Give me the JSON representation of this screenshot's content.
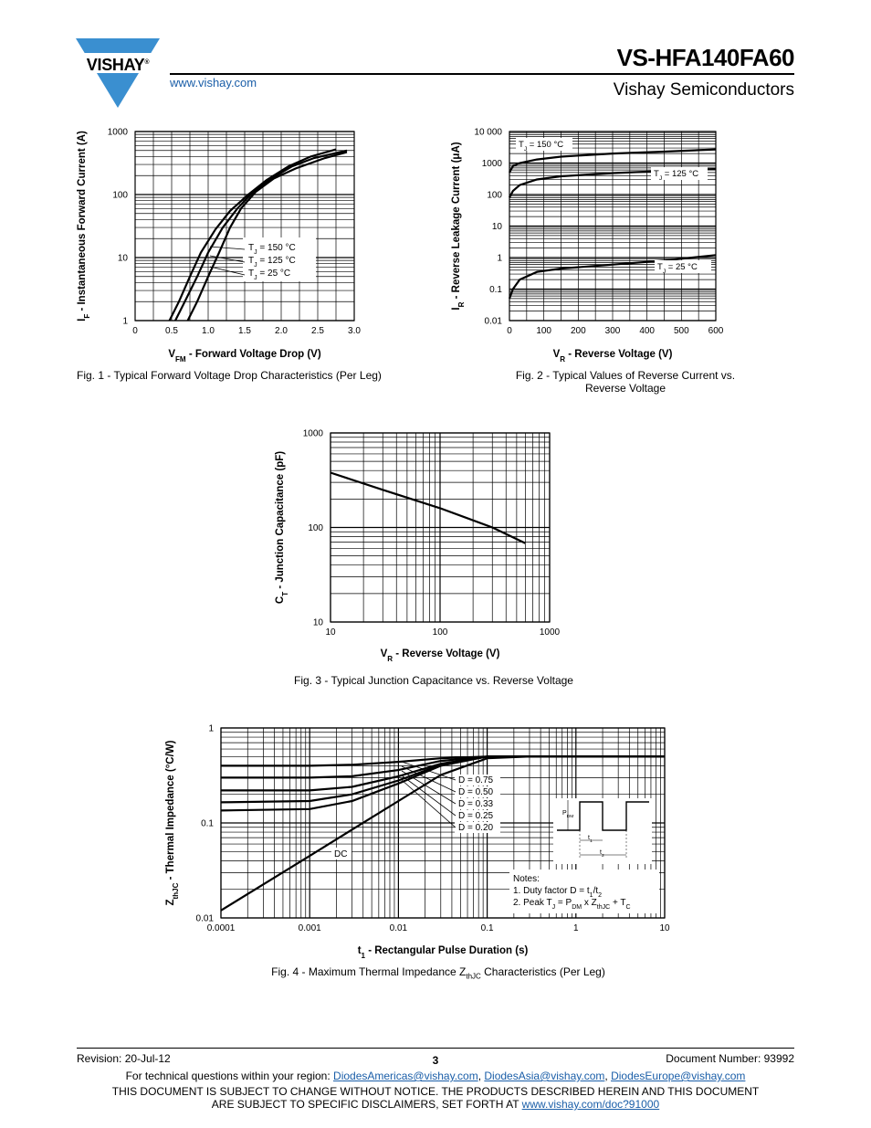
{
  "header": {
    "logo_text": "VISHAY",
    "logo_mark": "®",
    "website": "www.vishay.com",
    "title": "VS-HFA140FA60",
    "company": "Vishay Semiconductors"
  },
  "chart_data": [
    {
      "id": "fig1",
      "type": "line",
      "caption": "Fig. 1 - Typical Forward Voltage Drop Characteristics (Per Leg)",
      "xlabel": "VFM - Forward Voltage Drop (V)",
      "xlabel_parts": [
        "V",
        "FM",
        " - Forward Voltage Drop (V)"
      ],
      "ylabel": "IF - Instantaneous Forward Current (A)",
      "ylabel_parts": [
        "I",
        "F",
        " - Instantaneous Forward Current (A)"
      ],
      "x_scale": "linear",
      "y_scale": "log",
      "xlim": [
        0,
        3.0
      ],
      "ylim": [
        1,
        1000
      ],
      "x_ticks": [
        "0",
        "0.5",
        "1.0",
        "1.5",
        "2.0",
        "2.5",
        "3.0"
      ],
      "y_ticks": [
        "1",
        "10",
        "100",
        "1000"
      ],
      "grid": true,
      "legend": [
        {
          "pre": "T",
          "sub": "J",
          "post": " = 150 °C"
        },
        {
          "pre": "T",
          "sub": "J",
          "post": " = 125 °C"
        },
        {
          "pre": "T",
          "sub": "J",
          "post": " = 25 °C"
        }
      ],
      "series": [
        {
          "name": "TJ = 150 °C",
          "points": [
            [
              0.47,
              1
            ],
            [
              0.6,
              2
            ],
            [
              0.75,
              5
            ],
            [
              0.9,
              12
            ],
            [
              1.1,
              28
            ],
            [
              1.3,
              55
            ],
            [
              1.55,
              100
            ],
            [
              1.8,
              170
            ],
            [
              2.1,
              280
            ],
            [
              2.4,
              400
            ],
            [
              2.75,
              520
            ]
          ]
        },
        {
          "name": "TJ = 125 °C",
          "points": [
            [
              0.55,
              1
            ],
            [
              0.68,
              2
            ],
            [
              0.85,
              5
            ],
            [
              1.0,
              12
            ],
            [
              1.2,
              30
            ],
            [
              1.4,
              60
            ],
            [
              1.6,
              105
            ],
            [
              1.85,
              175
            ],
            [
              2.15,
              280
            ],
            [
              2.45,
              380
            ],
            [
              2.9,
              500
            ]
          ]
        },
        {
          "name": "TJ = 25 °C",
          "points": [
            [
              0.72,
              1
            ],
            [
              0.85,
              2
            ],
            [
              1.0,
              5
            ],
            [
              1.15,
              12
            ],
            [
              1.3,
              30
            ],
            [
              1.45,
              60
            ],
            [
              1.65,
              110
            ],
            [
              1.9,
              180
            ],
            [
              2.2,
              260
            ],
            [
              2.6,
              380
            ],
            [
              2.9,
              470
            ]
          ]
        }
      ]
    },
    {
      "id": "fig2",
      "type": "line",
      "caption": "Fig. 2 - Typical Values of Reverse Current vs. Reverse Voltage",
      "caption_lines": [
        "Fig. 2 - Typical Values of Reverse Current vs.",
        "Reverse Voltage"
      ],
      "xlabel": "VR - Reverse Voltage (V)",
      "xlabel_parts": [
        "V",
        "R",
        " - Reverse Voltage (V)"
      ],
      "ylabel": "IR - Reverse Leakage Current (μA)",
      "ylabel_parts": [
        "I",
        "R",
        " - Reverse Leakage Current (μA)"
      ],
      "x_scale": "linear",
      "y_scale": "log",
      "xlim": [
        0,
        600
      ],
      "ylim": [
        0.01,
        10000
      ],
      "x_ticks": [
        "0",
        "100",
        "200",
        "300",
        "400",
        "500",
        "600"
      ],
      "y_ticks": [
        "0.01",
        "0.1",
        "1",
        "10",
        "100",
        "1000",
        "10 000"
      ],
      "grid": true,
      "series": [
        {
          "name": "TJ = 150 °C",
          "label": {
            "pre": "T",
            "sub": "J",
            "post": " = 150 °C"
          },
          "points": [
            [
              0,
              500
            ],
            [
              10,
              800
            ],
            [
              30,
              1000
            ],
            [
              80,
              1300
            ],
            [
              150,
              1600
            ],
            [
              300,
              2000
            ],
            [
              450,
              2300
            ],
            [
              600,
              2700
            ]
          ]
        },
        {
          "name": "TJ = 125 °C",
          "label": {
            "pre": "T",
            "sub": "J",
            "post": " = 125 °C"
          },
          "points": [
            [
              0,
              80
            ],
            [
              10,
              130
            ],
            [
              30,
              200
            ],
            [
              80,
              300
            ],
            [
              150,
              380
            ],
            [
              300,
              480
            ],
            [
              450,
              560
            ],
            [
              600,
              650
            ]
          ]
        },
        {
          "name": "TJ = 25 °C",
          "label": {
            "pre": "T",
            "sub": "J",
            "post": " = 25 °C"
          },
          "points": [
            [
              0,
              0.05
            ],
            [
              10,
              0.1
            ],
            [
              30,
              0.2
            ],
            [
              80,
              0.35
            ],
            [
              150,
              0.45
            ],
            [
              300,
              0.6
            ],
            [
              450,
              0.8
            ],
            [
              600,
              1.2
            ]
          ]
        }
      ]
    },
    {
      "id": "fig3",
      "type": "line",
      "caption": "Fig. 3 - Typical Junction Capacitance vs. Reverse Voltage",
      "xlabel": "VR - Reverse Voltage (V)",
      "xlabel_parts": [
        "V",
        "R",
        " - Reverse Voltage (V)"
      ],
      "ylabel": "CT - Junction Capacitance (pF)",
      "ylabel_parts": [
        "C",
        "T",
        " - Junction Capacitance (pF)"
      ],
      "x_scale": "log",
      "y_scale": "log",
      "xlim": [
        10,
        1000
      ],
      "ylim": [
        10,
        1000
      ],
      "x_ticks": [
        "10",
        "100",
        "1000"
      ],
      "y_ticks": [
        "10",
        "100",
        "1000"
      ],
      "grid": true,
      "series": [
        {
          "name": "CT",
          "points": [
            [
              10,
              380
            ],
            [
              30,
              250
            ],
            [
              100,
              160
            ],
            [
              300,
              100
            ],
            [
              600,
              68
            ]
          ]
        }
      ]
    },
    {
      "id": "fig4",
      "type": "line",
      "caption_parts": [
        "Fig. 4 - Maximum Thermal Impedance Z",
        "thJC",
        " Characteristics (Per Leg)"
      ],
      "xlabel": "t1 - Rectangular Pulse Duration (s)",
      "xlabel_parts": [
        "t",
        "1",
        " - Rectangular Pulse Duration (s)"
      ],
      "ylabel": "ZthJC - Thermal Impedance (°C/W)",
      "ylabel_parts": [
        "Z",
        "thJC",
        " - Thermal Impedance (°C/W)"
      ],
      "x_scale": "log",
      "y_scale": "log",
      "xlim": [
        0.0001,
        10
      ],
      "ylim": [
        0.01,
        1
      ],
      "x_ticks": [
        "0.0001",
        "0.001",
        "0.01",
        "0.1",
        "1",
        "10"
      ],
      "y_ticks": [
        "0.01",
        "0.1",
        "1"
      ],
      "grid": true,
      "series": [
        {
          "name": "D = 0.75",
          "points": [
            [
              0.0001,
              0.4
            ],
            [
              0.001,
              0.4
            ],
            [
              0.003,
              0.41
            ],
            [
              0.01,
              0.44
            ],
            [
              0.03,
              0.48
            ],
            [
              0.1,
              0.5
            ],
            [
              1,
              0.5
            ],
            [
              10,
              0.5
            ]
          ]
        },
        {
          "name": "D = 0.50",
          "points": [
            [
              0.0001,
              0.3
            ],
            [
              0.001,
              0.3
            ],
            [
              0.003,
              0.31
            ],
            [
              0.01,
              0.36
            ],
            [
              0.03,
              0.45
            ],
            [
              0.1,
              0.5
            ],
            [
              1,
              0.5
            ],
            [
              10,
              0.5
            ]
          ]
        },
        {
          "name": "D = 0.33",
          "points": [
            [
              0.0001,
              0.22
            ],
            [
              0.001,
              0.22
            ],
            [
              0.003,
              0.24
            ],
            [
              0.01,
              0.31
            ],
            [
              0.03,
              0.42
            ],
            [
              0.1,
              0.5
            ],
            [
              1,
              0.5
            ],
            [
              10,
              0.5
            ]
          ]
        },
        {
          "name": "D = 0.25",
          "points": [
            [
              0.0001,
              0.165
            ],
            [
              0.001,
              0.17
            ],
            [
              0.003,
              0.2
            ],
            [
              0.01,
              0.28
            ],
            [
              0.03,
              0.41
            ],
            [
              0.1,
              0.5
            ],
            [
              1,
              0.5
            ],
            [
              10,
              0.5
            ]
          ]
        },
        {
          "name": "D = 0.20",
          "points": [
            [
              0.0001,
              0.135
            ],
            [
              0.001,
              0.14
            ],
            [
              0.003,
              0.17
            ],
            [
              0.01,
              0.26
            ],
            [
              0.03,
              0.4
            ],
            [
              0.1,
              0.5
            ],
            [
              1,
              0.5
            ],
            [
              10,
              0.5
            ]
          ]
        },
        {
          "name": "DC",
          "points": [
            [
              0.0001,
              0.012
            ],
            [
              0.001,
              0.045
            ],
            [
              0.003,
              0.085
            ],
            [
              0.01,
              0.17
            ],
            [
              0.03,
              0.32
            ],
            [
              0.1,
              0.48
            ],
            [
              0.3,
              0.5
            ],
            [
              10,
              0.5
            ]
          ]
        }
      ],
      "labels": [
        "D = 0.75",
        "D = 0.50",
        "D = 0.33",
        "D = 0.25",
        "D = 0.20"
      ],
      "dc_label": "DC",
      "notes_title": "Notes:",
      "note1_parts": [
        "1. Duty factor D = t",
        "1",
        "/t",
        "2"
      ],
      "note2_parts": [
        "2. Peak T",
        "J",
        " = P",
        "DM",
        " x Z",
        "thJC",
        " + T",
        "C"
      ],
      "inset_labels": {
        "p": "P",
        "dm": "DM",
        "t1": "t",
        "t1_sub": "1",
        "t2": "t",
        "t2_sub": "2"
      }
    }
  ],
  "footer": {
    "revision": "Revision: 20-Jul-12",
    "page": "3",
    "doc_number": "Document Number: 93992",
    "contact_prefix": "For technical questions within your region: ",
    "email_americas": "DiodesAmericas@vishay.com",
    "sep": ", ",
    "email_asia": "DiodesAsia@vishay.com",
    "email_europe": "DiodesEurope@vishay.com",
    "disclaimer_line1": "THIS DOCUMENT IS SUBJECT TO CHANGE WITHOUT NOTICE. THE PRODUCTS DESCRIBED HEREIN AND THIS DOCUMENT",
    "disclaimer_line2_prefix": "ARE SUBJECT TO SPECIFIC DISCLAIMERS, SET FORTH AT ",
    "disclaimer_link": "www.vishay.com/doc?91000"
  }
}
